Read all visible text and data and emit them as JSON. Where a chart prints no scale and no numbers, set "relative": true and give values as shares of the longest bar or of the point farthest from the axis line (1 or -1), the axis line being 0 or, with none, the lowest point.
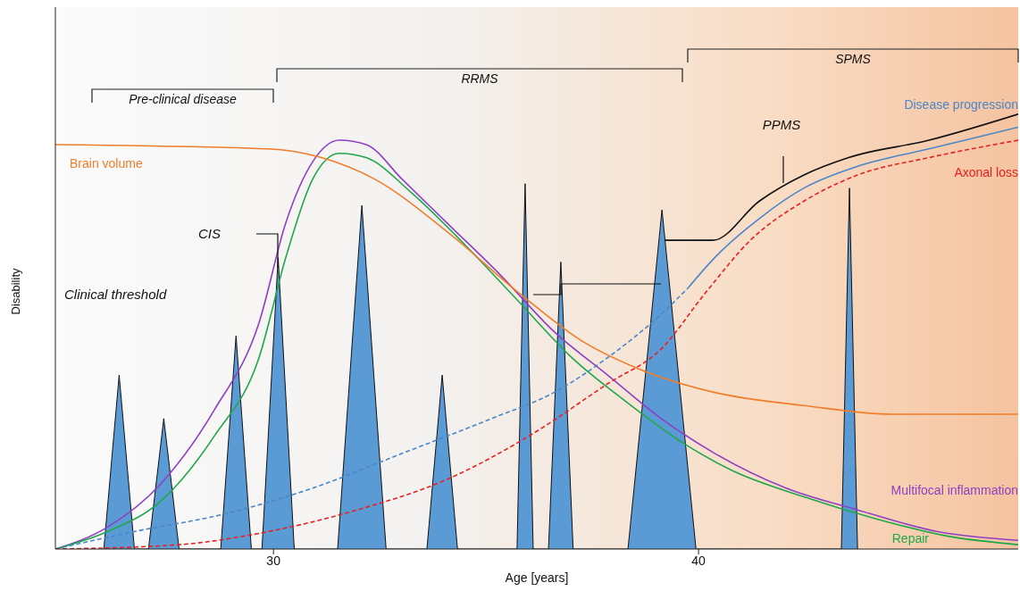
{
  "chart_data": {
    "type": "line",
    "relative": true,
    "xlabel": "Age [years]",
    "ylabel": "Disability",
    "xlim": [
      24.87,
      47.52
    ],
    "xticks": [
      30,
      40
    ],
    "grid": false,
    "legend": false,
    "annotations": [
      "Clinical threshold",
      "CIS",
      "PPMS",
      "Pre-clinical disease",
      "RRMS",
      "SPMS"
    ],
    "series": [
      {
        "name": "Multifocal inflammation",
        "color": "#8e3fc4",
        "x": [
          24.87,
          26.09,
          27.35,
          28.61,
          29.66,
          30.29,
          30.92,
          31.55,
          32.18,
          33.03,
          34.08,
          35.34,
          36.6,
          37.86,
          39.12,
          40.38,
          42.06,
          43.74,
          45.63,
          47.52
        ],
        "values": [
          0,
          0.05,
          0.15,
          0.32,
          0.52,
          0.75,
          0.89,
          0.94,
          0.93,
          0.85,
          0.75,
          0.63,
          0.5,
          0.4,
          0.3,
          0.22,
          0.14,
          0.09,
          0.04,
          0.02
        ]
      },
      {
        "name": "Repair",
        "color": "#1fa84a",
        "x": [
          24.87,
          26.09,
          27.35,
          28.61,
          29.66,
          30.29,
          30.92,
          31.55,
          32.18,
          33.24,
          34.5,
          35.76,
          37.02,
          38.28,
          39.54,
          40.8,
          42.48,
          44.16,
          45.84,
          47.52
        ],
        "values": [
          0,
          0.04,
          0.11,
          0.26,
          0.44,
          0.67,
          0.85,
          0.91,
          0.9,
          0.82,
          0.7,
          0.57,
          0.44,
          0.34,
          0.25,
          0.18,
          0.12,
          0.07,
          0.03,
          0.01
        ]
      },
      {
        "name": "Brain volume",
        "color": "#f07d2a",
        "x": [
          24.87,
          29.87,
          31.13,
          32.39,
          34.08,
          35.76,
          37.23,
          38.7,
          40.38,
          42.48,
          44.58,
          47.52
        ],
        "values": [
          0.93,
          0.92,
          0.9,
          0.85,
          0.73,
          0.59,
          0.48,
          0.41,
          0.36,
          0.33,
          0.31,
          0.31
        ]
      },
      {
        "color": "#4a86c8",
        "line_style": "dashed",
        "x": [
          24.87,
          26.72,
          28.82,
          30.92,
          33.03,
          35.13,
          36.6,
          37.86,
          39.12,
          39.75
        ],
        "values": [
          0,
          0.04,
          0.08,
          0.14,
          0.22,
          0.3,
          0.36,
          0.44,
          0.54,
          0.6
        ]
      },
      {
        "name": "Disease progression",
        "color": "#4a86c8",
        "x": [
          39.75,
          40.38,
          41.43,
          42.48,
          43.74,
          45.42,
          47.52
        ],
        "values": [
          0.6,
          0.67,
          0.76,
          0.83,
          0.88,
          0.92,
          0.97
        ]
      },
      {
        "name": "Axonal loss",
        "color": "#e8201e",
        "line_style": "dashed",
        "x": [
          24.87,
          27.77,
          29.87,
          31.97,
          34.08,
          36.18,
          37.86,
          39.12,
          40.17,
          41.22,
          42.48,
          43.74,
          45.42,
          47.52
        ],
        "values": [
          0,
          0.01,
          0.04,
          0.09,
          0.16,
          0.27,
          0.38,
          0.46,
          0.59,
          0.71,
          0.8,
          0.86,
          0.9,
          0.94
        ]
      },
      {
        "color": "#111111",
        "x": [
          39.22,
          40.34,
          41.43,
          42.48,
          43.53,
          45.42,
          47.52
        ],
        "values": [
          0.71,
          0.71,
          0.8,
          0.86,
          0.9,
          0.94,
          1.0
        ]
      },
      {
        "type": "area",
        "color": "#5b9bd5",
        "x": [
          26.01,
          26.37,
          26.73,
          27.06,
          27.42,
          27.78,
          28.76,
          29.12,
          29.48,
          29.73,
          30.11,
          30.49,
          31.51,
          32.08,
          32.65,
          33.61,
          33.97,
          34.33,
          35.73,
          35.92,
          36.11,
          36.47,
          36.76,
          37.05,
          38.34,
          39.14,
          39.94,
          43.36,
          43.55,
          43.74
        ],
        "values": [
          0,
          0.4,
          0,
          0,
          0.3,
          0,
          0,
          0.49,
          0,
          0,
          0.67,
          0,
          0,
          0.79,
          0,
          0,
          0.4,
          0,
          0,
          0.84,
          0,
          0,
          0.66,
          0,
          0,
          0.78,
          0,
          0,
          0.83,
          0
        ]
      }
    ]
  }
}
